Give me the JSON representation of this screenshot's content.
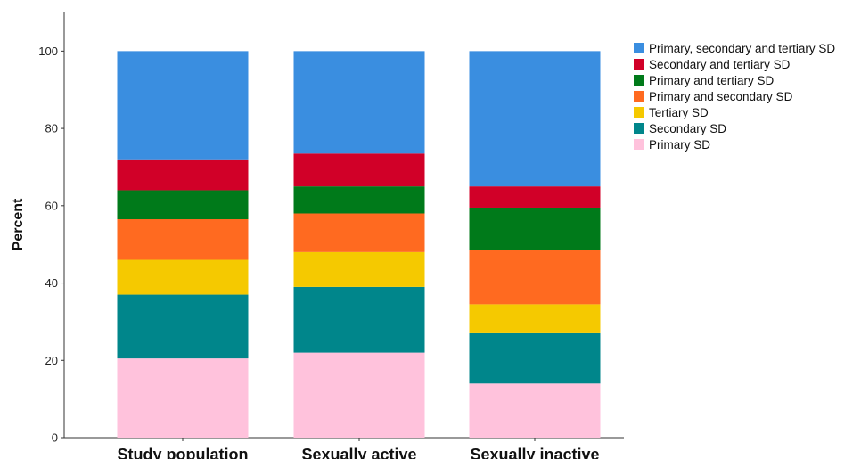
{
  "chart_data": {
    "type": "bar",
    "stacked": true,
    "title": "",
    "xlabel": "",
    "ylabel": "Percent",
    "ylim": [
      0,
      110
    ],
    "yticks": [
      0,
      20,
      40,
      60,
      80,
      100
    ],
    "grid": false,
    "legend_position": "right",
    "categories": [
      "Study population",
      "Sexually active",
      "Sexually inactive"
    ],
    "series": [
      {
        "name": "Primary SD",
        "color": "#ffc2dc",
        "values": [
          20.5,
          22.0,
          14.0
        ]
      },
      {
        "name": "Secondary SD",
        "color": "#00868b",
        "values": [
          16.5,
          17.0,
          13.0
        ]
      },
      {
        "name": "Tertiary SD",
        "color": "#f5c900",
        "values": [
          9.0,
          9.0,
          7.5
        ]
      },
      {
        "name": "Primary and secondary SD",
        "color": "#ff6a20",
        "values": [
          10.5,
          10.0,
          14.0
        ]
      },
      {
        "name": "Primary and tertiary SD",
        "color": "#007a1a",
        "values": [
          7.5,
          7.0,
          11.0
        ]
      },
      {
        "name": "Secondary and tertiary SD",
        "color": "#d10028",
        "values": [
          8.0,
          8.5,
          5.5
        ]
      },
      {
        "name": "Primary, secondary and tertiary SD",
        "color": "#3a8ee0",
        "values": [
          28.0,
          26.5,
          35.0
        ]
      }
    ],
    "legend_order": [
      "Primary, secondary and tertiary SD",
      "Secondary and tertiary SD",
      "Primary and tertiary SD",
      "Primary and secondary SD",
      "Tertiary SD",
      "Secondary SD",
      "Primary SD"
    ]
  }
}
